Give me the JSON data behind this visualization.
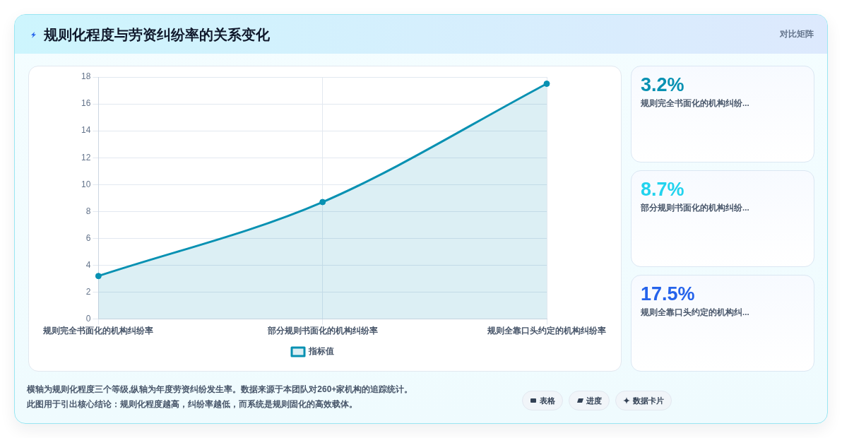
{
  "chart_data": [
    {
      "type": "area",
      "title": "规则化程度与劳资纠纷率的关系变化",
      "categories": [
        "规则完全书面化的机构纠纷率",
        "部分规则书面化的机构纠纷率",
        "规则全靠口头约定的机构纠纷率"
      ],
      "series": [
        {
          "name": "指标值",
          "color": "#0891b2",
          "values": [
            3.2,
            8.7,
            17.5
          ]
        }
      ],
      "ylim": [
        0,
        18
      ],
      "yticks": [
        0,
        2,
        4,
        6,
        8,
        10,
        12,
        14,
        16,
        18
      ],
      "grid": true,
      "legend": "bottom",
      "marker": "circle",
      "annotations": [
        "对比矩阵",
        "横轴为规则化程度三个等级,纵轴为年度劳资纠纷发生率。数据来源于本团队对260+家机构的追踪统计。",
        "此图用于引出核心结论：规则化程度越高，纠纷率越低，而系统是规则固化的高效载体。",
        "表格",
        "进度",
        "数据卡片"
      ]
    },
    {
      "type": "other",
      "categories": [
        "规则完全书面化的机构纠纷...",
        "部分规则书面化的机构纠纷...",
        "规则全靠口头约定的机构纠..."
      ],
      "value_labels": [
        "3.2%",
        "8.7%",
        "17.5%"
      ]
    }
  ]
}
